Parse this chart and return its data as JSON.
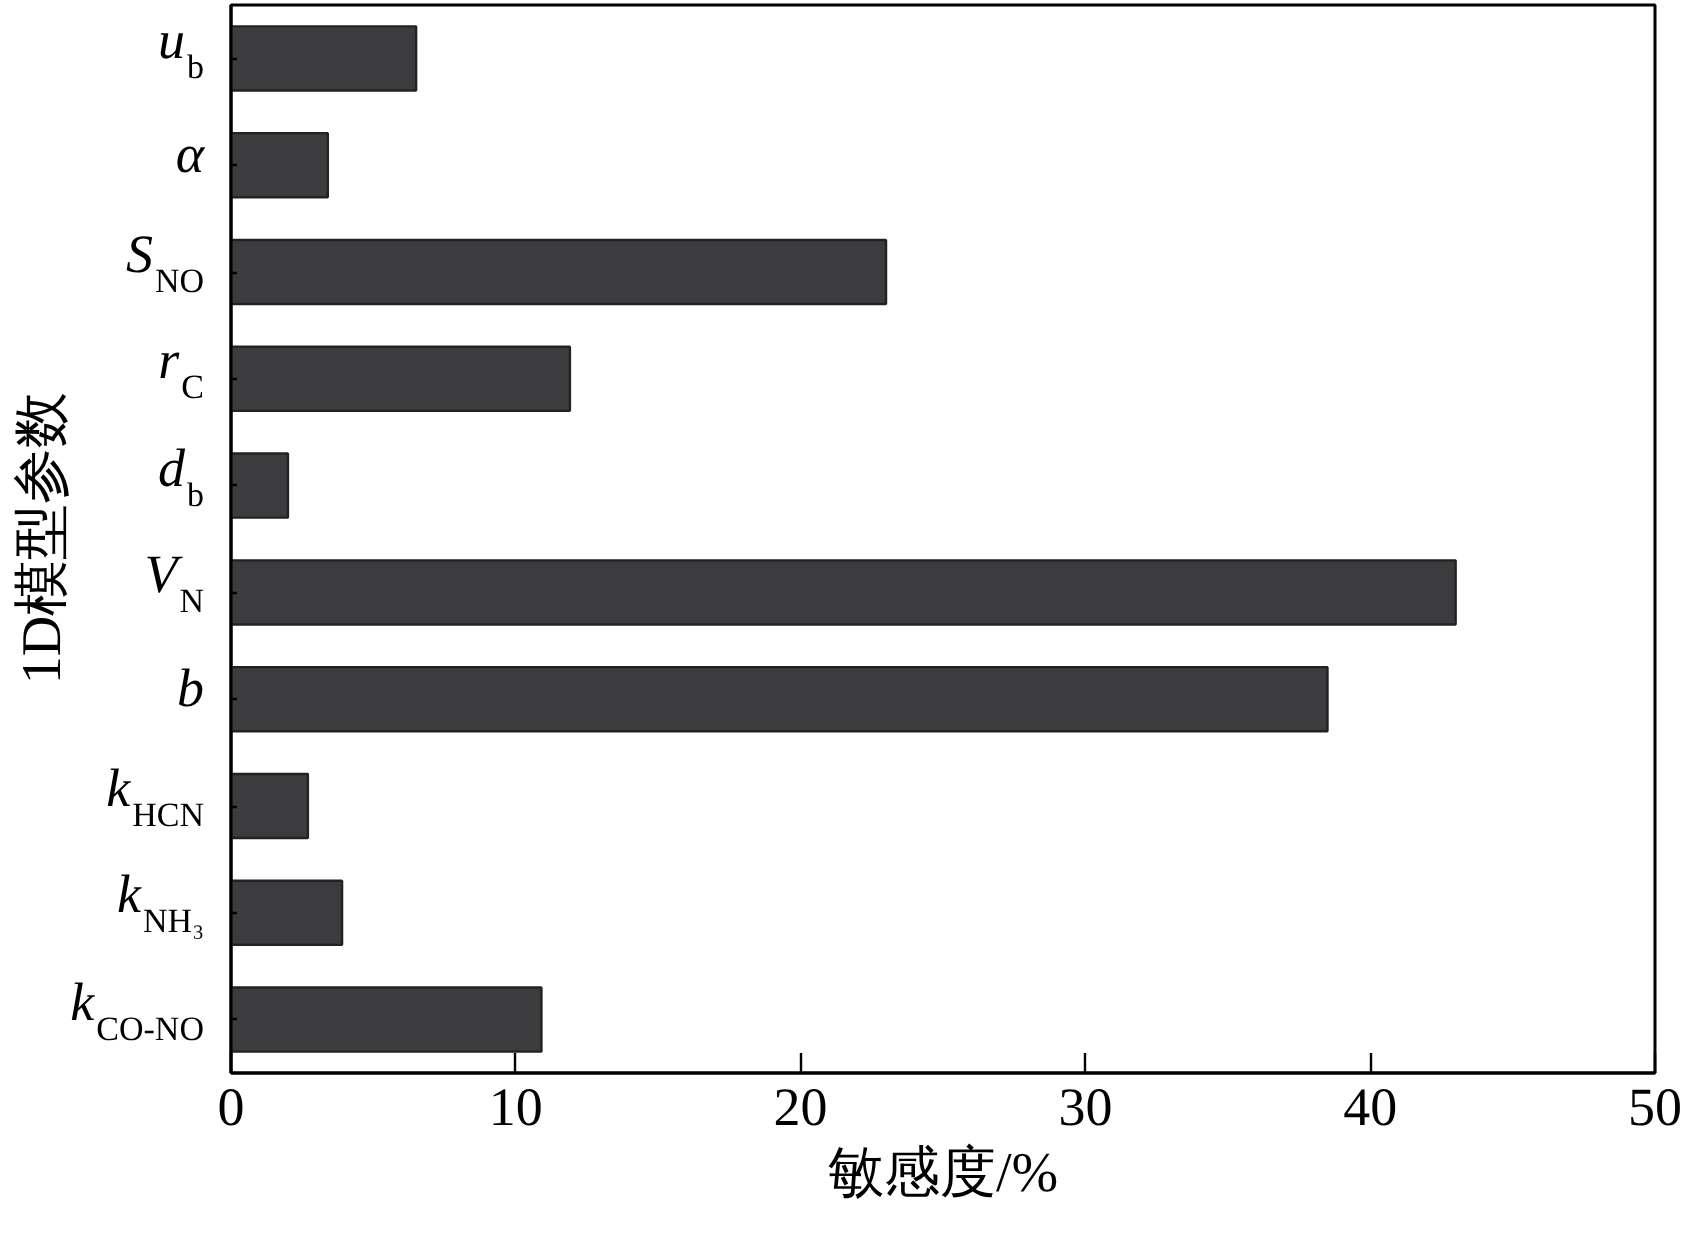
{
  "chart_data": {
    "type": "bar",
    "orientation": "horizontal",
    "categories": [
      "u$_{b}$",
      "α",
      "S$_{NO}$",
      "r$_{C}$",
      "d$_{b}$",
      "V$_{N}$",
      "b",
      "k$_{HCN}$",
      "k$_{NH₃}$",
      "k$_{CO-NO}$"
    ],
    "values": [
      6.5,
      3.4,
      23.0,
      11.9,
      2.0,
      43.0,
      38.5,
      2.7,
      3.9,
      10.9
    ],
    "color": "#3c3c3e",
    "xlim": [
      0,
      50
    ],
    "xticks": [
      0,
      10,
      20,
      30,
      40,
      50
    ],
    "xlabel": "敏感度/%",
    "ylabel": "1D模型参数"
  }
}
